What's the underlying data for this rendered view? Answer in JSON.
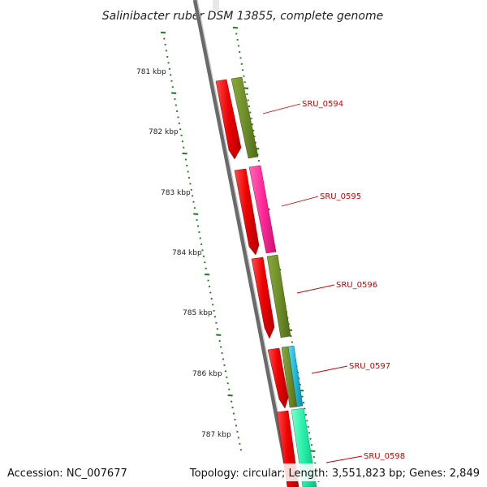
{
  "title": "Salinibacter ruber DSM 13855, complete genome",
  "footer": {
    "accession": "Accession: NC_007677",
    "stats": "Topology: circular; Length: 3,551,823 bp; Genes: 2,849"
  },
  "scale_labels": [
    "781 kbp",
    "782 kbp",
    "783 kbp",
    "784 kbp",
    "785 kbp",
    "786 kbp",
    "787 kbp"
  ],
  "genes": [
    "SRU_0594",
    "SRU_0595",
    "SRU_0596",
    "SRU_0597",
    "SRU_0598"
  ],
  "colors": {
    "backbone": "#8a8a8a",
    "ticks": "#1e7a1e",
    "red_track": "#ee0000",
    "olive": "#6f8f2a",
    "magenta": "#ff2a9a",
    "cyan": "#22b8d8",
    "mint": "#22eea8",
    "label_red": "#cc0000"
  }
}
